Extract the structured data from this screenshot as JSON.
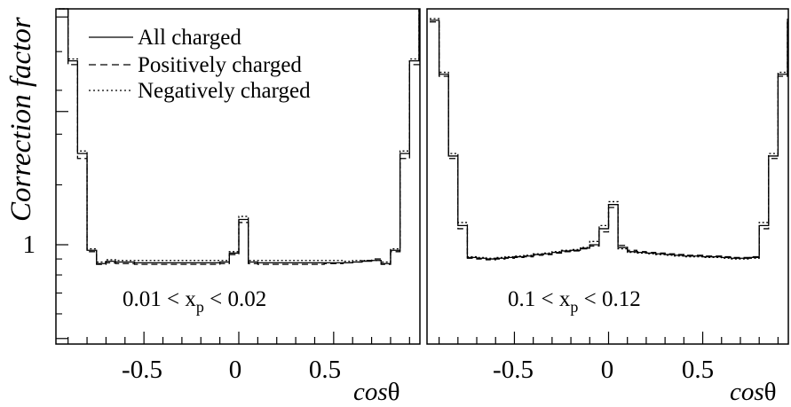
{
  "colors": {
    "all": "#000000",
    "positive": "#000000",
    "negative": "#000000",
    "frame": "#000000"
  },
  "ylabel": "Correction factor",
  "ytick_label": "1",
  "xtick_labels": [
    "-0.5",
    "0",
    "0.5"
  ],
  "xlabel": {
    "italic": "cos",
    "symbol": "θ"
  },
  "legend": [
    "All charged",
    "Positively charged",
    "Negatively charged"
  ],
  "chart_data": [
    {
      "type": "line",
      "step": true,
      "panel": "left",
      "annotation": {
        "pre": "0.01 < x",
        "sub": "p",
        "post": " < 0.02"
      },
      "xlim": [
        -0.95,
        0.95
      ],
      "ylim": [
        0.48,
        2.05
      ],
      "ytick_major": [
        1
      ],
      "bin_edges": [
        -0.95,
        -0.9,
        -0.85,
        -0.8,
        -0.75,
        -0.7,
        -0.65,
        -0.6,
        -0.55,
        -0.5,
        -0.45,
        -0.4,
        -0.35,
        -0.3,
        -0.25,
        -0.2,
        -0.15,
        -0.1,
        -0.05,
        0,
        0.05,
        0.1,
        0.15,
        0.2,
        0.25,
        0.3,
        0.35,
        0.4,
        0.45,
        0.5,
        0.55,
        0.6,
        0.65,
        0.7,
        0.75,
        0.8,
        0.85,
        0.9,
        0.95
      ],
      "series": [
        {
          "name": "All charged",
          "dash": "solid",
          "values": [
            2.05,
            1.75,
            1.32,
            0.96,
            0.87,
            0.885,
            0.88,
            0.88,
            0.875,
            0.875,
            0.875,
            0.875,
            0.875,
            0.875,
            0.875,
            0.875,
            0.875,
            0.88,
            0.94,
            1.08,
            0.88,
            0.875,
            0.875,
            0.875,
            0.875,
            0.875,
            0.875,
            0.875,
            0.875,
            0.875,
            0.875,
            0.88,
            0.885,
            0.89,
            0.87,
            0.96,
            1.32,
            1.75,
            2.05
          ]
        },
        {
          "name": "Positively charged",
          "dash": "dashed",
          "values": [
            2.05,
            1.73,
            1.3,
            0.95,
            0.865,
            0.875,
            0.87,
            0.87,
            0.865,
            0.865,
            0.865,
            0.865,
            0.865,
            0.865,
            0.865,
            0.865,
            0.865,
            0.87,
            0.93,
            1.07,
            0.87,
            0.865,
            0.865,
            0.865,
            0.865,
            0.865,
            0.865,
            0.865,
            0.87,
            0.87,
            0.875,
            0.88,
            0.89,
            0.9,
            0.865,
            0.95,
            1.3,
            1.73,
            2.05
          ]
        },
        {
          "name": "Negatively charged",
          "dash": "dotted",
          "values": [
            2.05,
            1.76,
            1.33,
            0.97,
            0.88,
            0.895,
            0.89,
            0.89,
            0.89,
            0.89,
            0.89,
            0.89,
            0.89,
            0.89,
            0.89,
            0.89,
            0.89,
            0.89,
            0.95,
            1.09,
            0.89,
            0.89,
            0.89,
            0.89,
            0.89,
            0.89,
            0.89,
            0.89,
            0.89,
            0.89,
            0.885,
            0.89,
            0.89,
            0.89,
            0.88,
            0.97,
            1.33,
            1.76,
            2.05
          ]
        }
      ]
    },
    {
      "type": "line",
      "step": true,
      "panel": "right",
      "annotation": {
        "pre": "0.1 < x",
        "sub": "p",
        "post": " < 0.12"
      },
      "xlim": [
        -0.95,
        0.95
      ],
      "ylim": [
        0.48,
        2.05
      ],
      "bin_edges": [
        -0.95,
        -0.9,
        -0.85,
        -0.8,
        -0.75,
        -0.7,
        -0.65,
        -0.6,
        -0.55,
        -0.5,
        -0.45,
        -0.4,
        -0.35,
        -0.3,
        -0.25,
        -0.2,
        -0.15,
        -0.1,
        -0.05,
        0,
        0.05,
        0.1,
        0.15,
        0.2,
        0.25,
        0.3,
        0.35,
        0.4,
        0.45,
        0.5,
        0.55,
        0.6,
        0.65,
        0.7,
        0.75,
        0.8,
        0.85,
        0.9,
        0.95
      ],
      "series": [
        {
          "name": "All charged",
          "dash": "solid",
          "values": [
            1.98,
            1.68,
            1.31,
            1.06,
            0.91,
            0.905,
            0.9,
            0.905,
            0.91,
            0.915,
            0.92,
            0.93,
            0.935,
            0.945,
            0.955,
            0.96,
            0.975,
            1.0,
            1.05,
            1.13,
            0.98,
            0.95,
            0.945,
            0.94,
            0.935,
            0.93,
            0.925,
            0.92,
            0.92,
            0.915,
            0.915,
            0.91,
            0.905,
            0.905,
            0.91,
            1.06,
            1.31,
            1.68,
            1.98
          ]
        },
        {
          "name": "Positively charged",
          "dash": "dashed",
          "values": [
            1.97,
            1.67,
            1.3,
            1.05,
            0.905,
            0.9,
            0.895,
            0.9,
            0.905,
            0.91,
            0.915,
            0.925,
            0.93,
            0.94,
            0.95,
            0.955,
            0.97,
            0.99,
            1.04,
            1.12,
            0.995,
            0.96,
            0.95,
            0.945,
            0.94,
            0.935,
            0.93,
            0.925,
            0.925,
            0.92,
            0.92,
            0.915,
            0.91,
            0.91,
            0.915,
            1.05,
            1.3,
            1.67,
            1.97
          ]
        },
        {
          "name": "Negatively charged",
          "dash": "dotted",
          "values": [
            1.99,
            1.69,
            1.32,
            1.07,
            0.915,
            0.91,
            0.905,
            0.91,
            0.915,
            0.92,
            0.925,
            0.935,
            0.94,
            0.95,
            0.96,
            0.965,
            0.98,
            1.01,
            1.06,
            1.14,
            0.97,
            0.945,
            0.94,
            0.935,
            0.93,
            0.925,
            0.92,
            0.915,
            0.915,
            0.91,
            0.91,
            0.905,
            0.9,
            0.9,
            0.905,
            1.07,
            1.32,
            1.69,
            1.99
          ]
        }
      ]
    }
  ]
}
